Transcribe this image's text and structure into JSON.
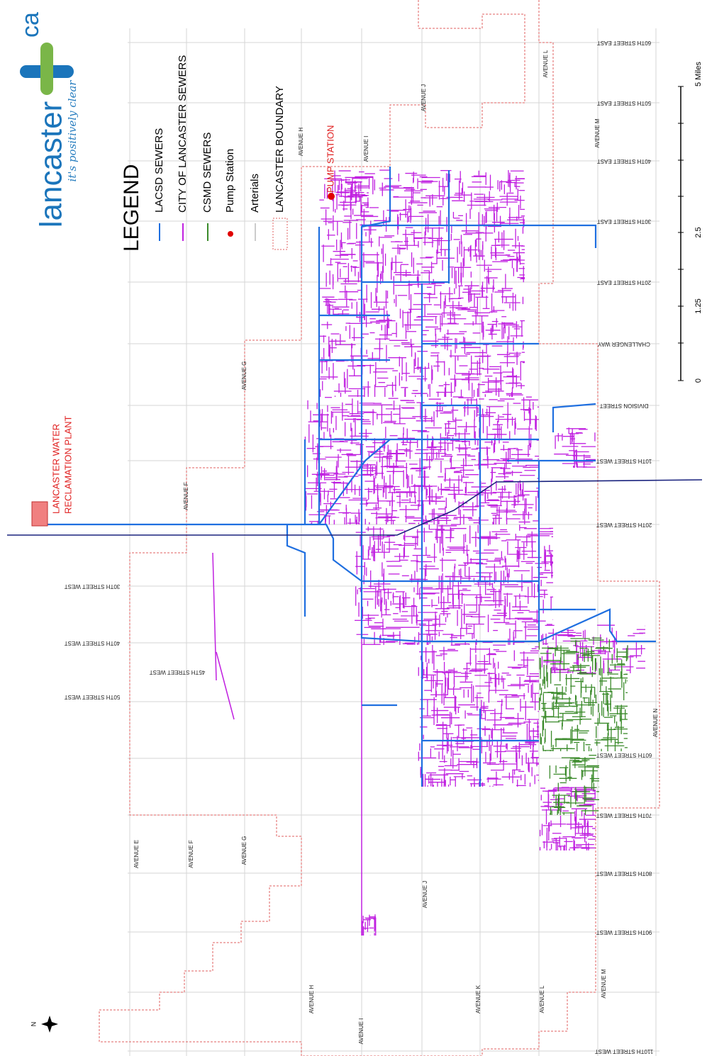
{
  "logo": {
    "name": "lancaster",
    "suffix": "ca",
    "tagline": "it's positively clear"
  },
  "legend": {
    "title": "LEGEND",
    "items": [
      "LACSD SEWERS",
      "CITY OF LANCASTER SEWERS",
      "CSMD SEWERS",
      "Pump Station",
      "Arterials",
      "LANCASTER BOUNDARY"
    ]
  },
  "facilities": {
    "pump_station": "PUMP STATION",
    "plant": [
      "LANCASTER WATER",
      "RECLAMATION PLANT"
    ]
  },
  "scale_bar": {
    "labels": [
      0,
      1.25,
      2.5,
      "5 Miles"
    ]
  },
  "compass": "N",
  "street_labels": [
    "60TH STREET EAST",
    "50TH STREET EAST",
    "40TH STREET EAST",
    "30TH STREET EAST",
    "20TH STREET EAST",
    "CHALLENGER WAY",
    "DIVISION STREET",
    "10TH STREET WEST",
    "20TH STREET WEST",
    "60TH STREET WEST",
    "70TH STREET WEST",
    "80TH STREET WEST",
    "90TH STREET WEST",
    "110TH STREET WEST",
    "30TH STREET WEST",
    "40TH STREET WEST",
    "45TH STREET WEST",
    "50TH STREET WEST"
  ],
  "avenue_labels": [
    "AVENUE L",
    "AVENUE J",
    "AVENUE M",
    "AVENUE I",
    "AVENUE H",
    "AVENUE G",
    "AVENUE F",
    "AVENUE N",
    "AVENUE E",
    "AVENUE F",
    "AVENUE G",
    "AVENUE J",
    "AVENUE M",
    "AVENUE K",
    "AVENUE L",
    "AVENUE H",
    "AVENUE I"
  ]
}
